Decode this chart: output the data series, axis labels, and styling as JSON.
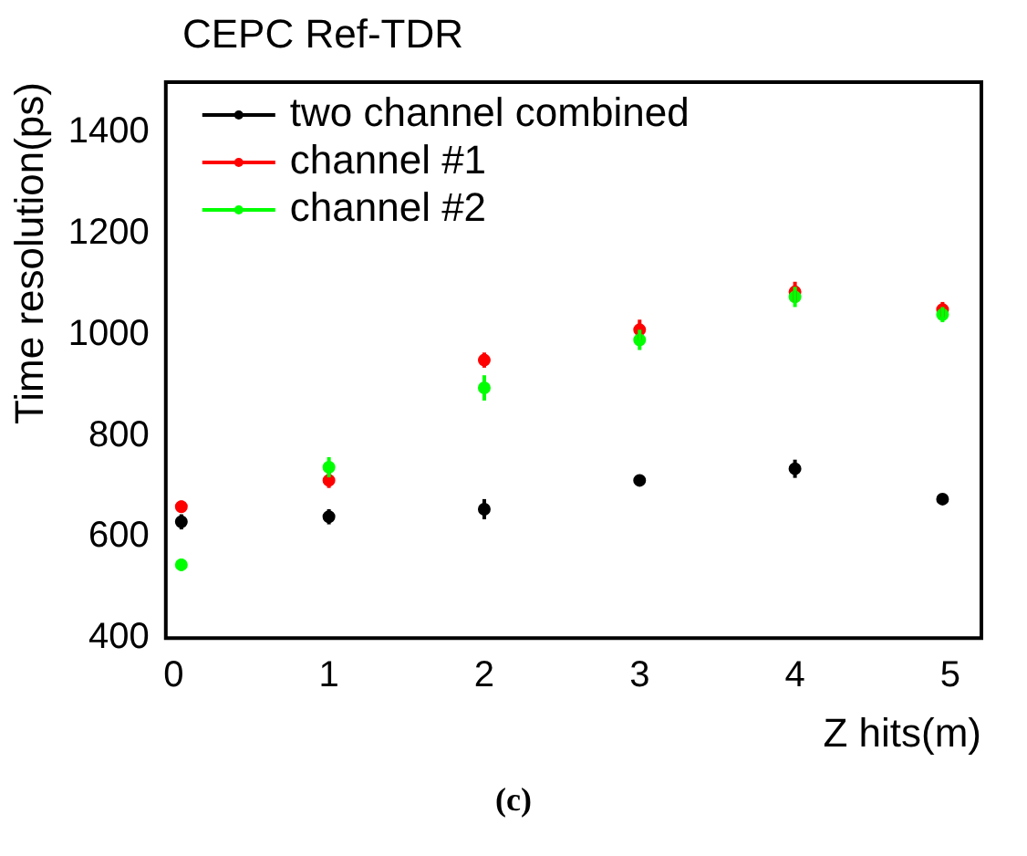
{
  "chart_data": {
    "type": "scatter",
    "title": "CEPC Ref-TDR",
    "xlabel": "Z hits(m)",
    "ylabel": "Time resolution(ps)",
    "x": [
      0.05,
      1,
      2,
      3,
      4,
      4.95
    ],
    "series": [
      {
        "name": "two channel combined",
        "color": "#000000",
        "values": [
          630,
          640,
          655,
          712,
          735,
          675
        ],
        "errors": [
          15,
          15,
          20,
          10,
          18,
          8
        ]
      },
      {
        "name": "channel #1",
        "color": "#ff0000",
        "values": [
          660,
          712,
          950,
          1010,
          1085,
          1050
        ],
        "errors": [
          12,
          15,
          15,
          20,
          20,
          15
        ]
      },
      {
        "name": "channel #2",
        "color": "#00ff00",
        "values": [
          545,
          738,
          895,
          990,
          1075,
          1040
        ],
        "errors": [
          12,
          20,
          25,
          20,
          20,
          15
        ]
      }
    ],
    "xlim": [
      -0.05,
      5.2
    ],
    "xticks": [
      0,
      1,
      2,
      3,
      4,
      5
    ],
    "ylim": [
      400,
      1500
    ],
    "yticks": [
      400,
      600,
      800,
      1000,
      1200,
      1400
    ],
    "grid": false,
    "legend": "top left",
    "marker": "circle",
    "annotations": [
      "(c)"
    ]
  }
}
